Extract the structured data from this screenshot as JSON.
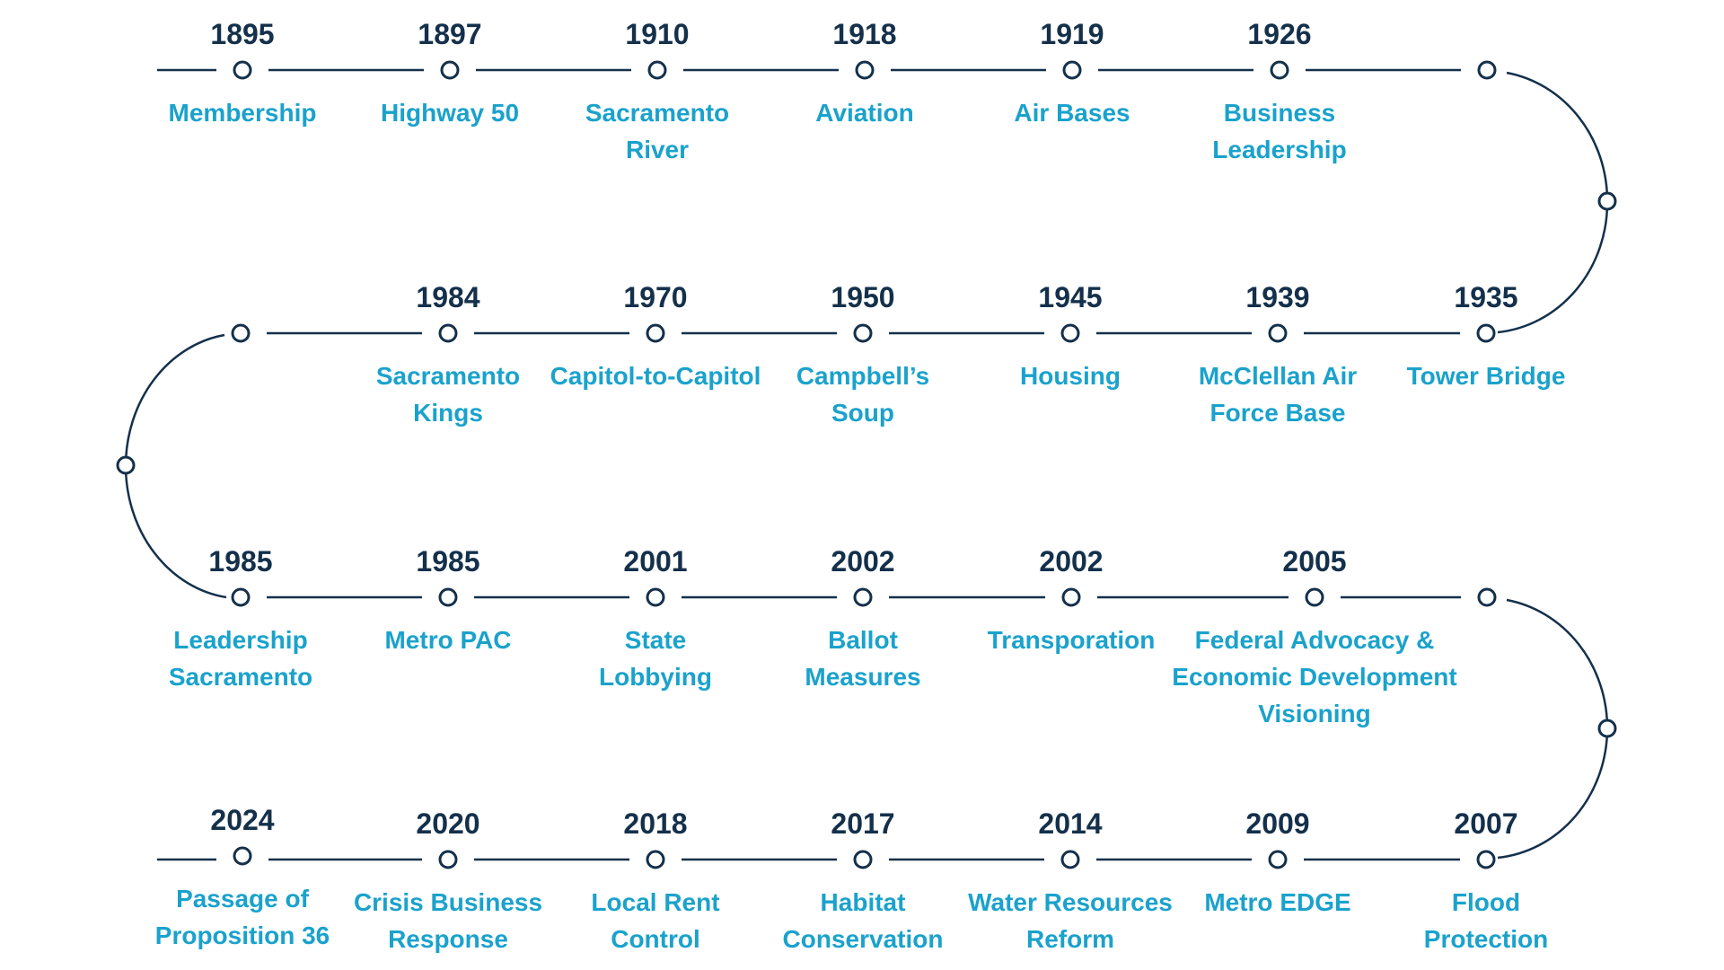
{
  "colors": {
    "track": "#14304b",
    "year": "#14304b",
    "label": "#1aa2cc",
    "background": "#ffffff"
  },
  "rows": [
    {
      "events": [
        {
          "year": "1895",
          "label": [
            "Membership"
          ]
        },
        {
          "year": "1897",
          "label": [
            "Highway 50"
          ]
        },
        {
          "year": "1910",
          "label": [
            "Sacramento",
            "River"
          ]
        },
        {
          "year": "1918",
          "label": [
            "Aviation"
          ]
        },
        {
          "year": "1919",
          "label": [
            "Air Bases"
          ]
        },
        {
          "year": "1926",
          "label": [
            "Business",
            "Leadership"
          ]
        }
      ]
    },
    {
      "events": [
        {
          "year": "1984",
          "label": [
            "Sacramento",
            "Kings"
          ]
        },
        {
          "year": "1970",
          "label": [
            "Capitol-to-Capitol"
          ]
        },
        {
          "year": "1950",
          "label": [
            "Campbell’s",
            "Soup"
          ]
        },
        {
          "year": "1945",
          "label": [
            "Housing"
          ]
        },
        {
          "year": "1939",
          "label": [
            "McClellan Air",
            "Force Base"
          ]
        },
        {
          "year": "1935",
          "label": [
            "Tower Bridge"
          ]
        }
      ]
    },
    {
      "events": [
        {
          "year": "1985",
          "label": [
            "Leadership",
            "Sacramento"
          ]
        },
        {
          "year": "1985",
          "label": [
            "Metro PAC"
          ]
        },
        {
          "year": "2001",
          "label": [
            "State",
            "Lobbying"
          ]
        },
        {
          "year": "2002",
          "label": [
            "Ballot",
            "Measures"
          ]
        },
        {
          "year": "2002",
          "label": [
            "Transporation"
          ]
        },
        {
          "year": "2005",
          "label": [
            "Federal Advocacy &",
            "Economic Development",
            "Visioning"
          ]
        }
      ]
    },
    {
      "events": [
        {
          "year": "2024",
          "label": [
            "Passage of",
            "Proposition 36"
          ]
        },
        {
          "year": "2020",
          "label": [
            "Crisis Business",
            "Response"
          ]
        },
        {
          "year": "2018",
          "label": [
            "Local Rent",
            "Control"
          ]
        },
        {
          "year": "2017",
          "label": [
            "Habitat",
            "Conservation"
          ]
        },
        {
          "year": "2014",
          "label": [
            "Water Resources",
            "Reform"
          ]
        },
        {
          "year": "2009",
          "label": [
            "Metro EDGE"
          ]
        },
        {
          "year": "2007",
          "label": [
            "Flood",
            "Protection"
          ]
        }
      ]
    }
  ]
}
